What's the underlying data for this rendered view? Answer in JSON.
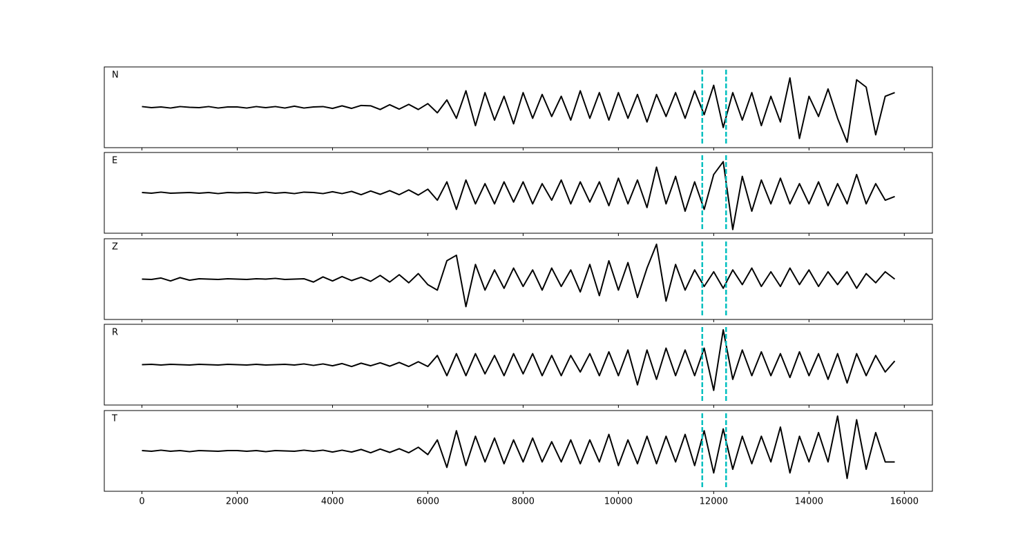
{
  "chart_data": {
    "type": "line",
    "x": [
      0,
      200,
      400,
      600,
      800,
      1000,
      1200,
      1400,
      1600,
      1800,
      2000,
      2200,
      2400,
      2600,
      2800,
      3000,
      3200,
      3400,
      3600,
      3800,
      4000,
      4200,
      4400,
      4600,
      4800,
      5000,
      5200,
      5400,
      5600,
      5800,
      6000,
      6200,
      6400,
      6600,
      6800,
      7000,
      7200,
      7400,
      7600,
      7800,
      8000,
      8200,
      8400,
      8600,
      8800,
      9000,
      9200,
      9400,
      9600,
      9800,
      10000,
      10200,
      10400,
      10600,
      10800,
      11000,
      11200,
      11400,
      11600,
      11800,
      12000,
      12200,
      12400,
      12600,
      12800,
      13000,
      13200,
      13400,
      13600,
      13800,
      14000,
      14200,
      14400,
      14600,
      14800,
      15000,
      15200,
      15400,
      15600,
      15800
    ],
    "xlim": [
      -790,
      16590
    ],
    "xticks": [
      0,
      2000,
      4000,
      6000,
      8000,
      10000,
      12000,
      14000,
      16000
    ],
    "ylim": [
      -1.1,
      1.1
    ],
    "vlines": [
      11760,
      12260
    ],
    "vline_color": "#00bfbf",
    "series": [
      {
        "name": "N",
        "color": "#000000",
        "values": [
          0.02,
          -0.01,
          0.01,
          -0.02,
          0.02,
          0,
          -0.01,
          0.02,
          -0.02,
          0.01,
          0.01,
          -0.02,
          0.02,
          -0.01,
          0.02,
          -0.02,
          0.03,
          -0.02,
          0.01,
          0.02,
          -0.03,
          0.04,
          -0.03,
          0.05,
          0.04,
          -0.06,
          0.07,
          -0.05,
          0.08,
          -0.06,
          0.1,
          -0.15,
          0.2,
          -0.3,
          0.45,
          -0.5,
          0.4,
          -0.35,
          0.3,
          -0.45,
          0.4,
          -0.3,
          0.35,
          -0.25,
          0.3,
          -0.35,
          0.45,
          -0.3,
          0.4,
          -0.35,
          0.4,
          -0.3,
          0.35,
          -0.4,
          0.35,
          -0.25,
          0.4,
          -0.3,
          0.45,
          -0.2,
          0.6,
          -0.55,
          0.4,
          -0.35,
          0.4,
          -0.5,
          0.3,
          -0.4,
          0.8,
          -0.85,
          0.3,
          -0.25,
          0.5,
          -0.3,
          -0.95,
          0.75,
          0.55,
          -0.75,
          0.3,
          0.4
        ]
      },
      {
        "name": "E",
        "color": "#000000",
        "values": [
          0.01,
          -0.01,
          0.02,
          -0.01,
          0,
          0.01,
          -0.01,
          0.01,
          -0.02,
          0.01,
          0,
          0.01,
          -0.01,
          0.02,
          -0.01,
          0.01,
          -0.02,
          0.02,
          0.01,
          -0.02,
          0.03,
          -0.02,
          0.04,
          -0.05,
          0.05,
          -0.04,
          0.06,
          -0.05,
          0.08,
          -0.06,
          0.1,
          -0.2,
          0.3,
          -0.45,
          0.35,
          -0.3,
          0.25,
          -0.3,
          0.3,
          -0.25,
          0.3,
          -0.3,
          0.25,
          -0.2,
          0.35,
          -0.3,
          0.3,
          -0.25,
          0.3,
          -0.35,
          0.4,
          -0.3,
          0.35,
          -0.4,
          0.7,
          -0.3,
          0.45,
          -0.5,
          0.3,
          -0.45,
          0.5,
          0.85,
          -1.0,
          0.45,
          -0.5,
          0.35,
          -0.3,
          0.4,
          -0.3,
          0.25,
          -0.3,
          0.3,
          -0.35,
          0.25,
          -0.3,
          0.5,
          -0.3,
          0.25,
          -0.2,
          -0.1
        ]
      },
      {
        "name": "Z",
        "color": "#000000",
        "values": [
          0,
          -0.01,
          0.03,
          -0.05,
          0.04,
          -0.03,
          0.01,
          0,
          -0.01,
          0.01,
          0,
          -0.01,
          0.01,
          0,
          0.02,
          -0.01,
          0,
          0.01,
          -0.08,
          0.06,
          -0.05,
          0.07,
          -0.04,
          0.05,
          -0.06,
          0.1,
          -0.08,
          0.12,
          -0.1,
          0.15,
          -0.15,
          -0.3,
          0.5,
          0.65,
          -0.75,
          0.4,
          -0.3,
          0.25,
          -0.25,
          0.3,
          -0.2,
          0.25,
          -0.3,
          0.3,
          -0.2,
          0.25,
          -0.35,
          0.4,
          -0.45,
          0.5,
          -0.3,
          0.45,
          -0.5,
          0.3,
          0.95,
          -0.6,
          0.4,
          -0.3,
          0.25,
          -0.2,
          0.2,
          -0.25,
          0.25,
          -0.15,
          0.3,
          -0.2,
          0.2,
          -0.2,
          0.3,
          -0.15,
          0.25,
          -0.2,
          0.2,
          -0.15,
          0.2,
          -0.25,
          0.15,
          -0.1,
          0.2,
          0
        ]
      },
      {
        "name": "R",
        "color": "#000000",
        "values": [
          0,
          0.01,
          -0.01,
          0.01,
          0,
          -0.01,
          0.01,
          0,
          -0.01,
          0.01,
          0,
          -0.01,
          0.01,
          -0.01,
          0,
          0.01,
          -0.01,
          0.02,
          -0.02,
          0.02,
          -0.03,
          0.03,
          -0.05,
          0.04,
          -0.03,
          0.05,
          -0.04,
          0.06,
          -0.05,
          0.08,
          -0.05,
          0.25,
          -0.3,
          0.3,
          -0.3,
          0.3,
          -0.25,
          0.25,
          -0.3,
          0.3,
          -0.25,
          0.3,
          -0.3,
          0.25,
          -0.3,
          0.25,
          -0.2,
          0.3,
          -0.3,
          0.35,
          -0.3,
          0.4,
          -0.55,
          0.4,
          -0.4,
          0.45,
          -0.3,
          0.4,
          -0.3,
          0.45,
          -0.7,
          0.95,
          -0.4,
          0.4,
          -0.3,
          0.35,
          -0.3,
          0.3,
          -0.35,
          0.35,
          -0.3,
          0.3,
          -0.4,
          0.3,
          -0.5,
          0.3,
          -0.3,
          0.25,
          -0.2,
          0.1
        ]
      },
      {
        "name": "T",
        "color": "#000000",
        "values": [
          0.01,
          -0.01,
          0.02,
          -0.01,
          0.01,
          -0.02,
          0.01,
          0,
          -0.01,
          0.01,
          0.01,
          -0.01,
          0.01,
          -0.02,
          0.01,
          0,
          -0.01,
          0.02,
          -0.01,
          0.02,
          -0.03,
          0.02,
          -0.03,
          0.04,
          -0.05,
          0.05,
          -0.04,
          0.06,
          -0.05,
          0.1,
          -0.1,
          0.3,
          -0.45,
          0.55,
          -0.4,
          0.4,
          -0.3,
          0.35,
          -0.35,
          0.3,
          -0.3,
          0.35,
          -0.3,
          0.25,
          -0.3,
          0.3,
          -0.35,
          0.3,
          -0.3,
          0.45,
          -0.4,
          0.3,
          -0.35,
          0.4,
          -0.35,
          0.4,
          -0.3,
          0.45,
          -0.4,
          0.55,
          -0.6,
          0.6,
          -0.5,
          0.4,
          -0.35,
          0.4,
          -0.3,
          0.65,
          -0.6,
          0.4,
          -0.3,
          0.5,
          -0.3,
          0.95,
          -0.75,
          0.85,
          -0.5,
          0.5,
          -0.3,
          -0.3
        ]
      }
    ]
  }
}
